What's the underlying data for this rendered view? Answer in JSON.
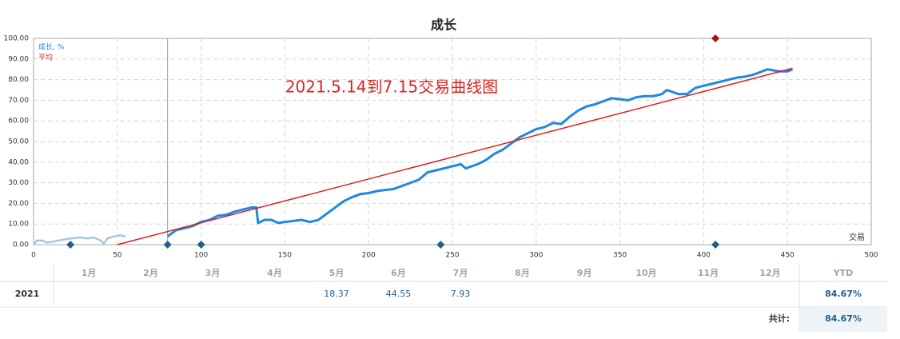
{
  "chart_data": {
    "type": "line",
    "title": "成长",
    "annotation": "2021.5.14到7.15交易曲线图",
    "x_label": "交易",
    "xlim": [
      0,
      500
    ],
    "xticks": [
      0,
      50,
      100,
      150,
      200,
      250,
      300,
      350,
      400,
      450,
      500
    ],
    "ylim": [
      0,
      100
    ],
    "yticks": [
      {
        "value": 0,
        "label": "0.00"
      },
      {
        "value": 10,
        "label": "10.00"
      },
      {
        "value": 20,
        "label": "20.00"
      },
      {
        "value": 30,
        "label": "30.00"
      },
      {
        "value": 40,
        "label": "40.00"
      },
      {
        "value": 50,
        "label": "50.00"
      },
      {
        "value": 60,
        "label": "60.00"
      },
      {
        "value": 70,
        "label": "70.00"
      },
      {
        "value": 80,
        "label": "80.00"
      },
      {
        "value": 90,
        "label": "90.00"
      },
      {
        "value": 100,
        "label": "100.00"
      }
    ],
    "grid": true,
    "legend": "top-left",
    "cursor_x": 80,
    "event_x": [
      22,
      80,
      100,
      243,
      407
    ],
    "event_color": "#1f5f8f",
    "top_event_x": [
      407
    ],
    "top_event_color": "#a01818",
    "series": [
      {
        "color": "#a9c6dc",
        "x": [
          0,
          2,
          5,
          8,
          12,
          18,
          22,
          28,
          32,
          36,
          40,
          42,
          44,
          48,
          52,
          55
        ],
        "values": [
          0,
          2,
          2,
          1,
          1.5,
          2.5,
          3,
          3.5,
          3,
          3.5,
          2,
          0.5,
          3,
          4,
          4.5,
          4
        ]
      },
      {
        "name": "成长, %",
        "color": "#1e88e5",
        "x": [
          80,
          85,
          90,
          95,
          100,
          105,
          110,
          115,
          120,
          125,
          130,
          133,
          134,
          138,
          142,
          146,
          150,
          155,
          160,
          165,
          170,
          175,
          180,
          185,
          190,
          195,
          200,
          205,
          210,
          215,
          220,
          225,
          230,
          235,
          240,
          245,
          250,
          255,
          258,
          265,
          270,
          275,
          280,
          285,
          290,
          295,
          300,
          305,
          310,
          315,
          320,
          325,
          330,
          335,
          340,
          345,
          350,
          355,
          360,
          365,
          370,
          375,
          378,
          385,
          390,
          395,
          400,
          405,
          410,
          415,
          420,
          425,
          430,
          435,
          438,
          445,
          450,
          453
        ],
        "values": [
          4,
          7,
          8,
          9,
          11,
          12,
          14,
          14.5,
          16,
          17,
          18,
          18,
          10.5,
          12,
          12,
          10.5,
          11,
          11.5,
          12,
          11,
          12,
          15,
          18,
          21,
          23,
          24.5,
          25,
          26,
          26.5,
          27,
          28.5,
          30,
          31.5,
          35,
          36,
          37,
          38,
          39,
          37,
          39,
          41,
          44,
          46,
          49,
          52,
          54,
          56,
          57,
          59,
          58.5,
          62,
          65,
          67,
          68,
          69.5,
          71,
          70.5,
          70,
          71.5,
          72,
          72,
          73,
          75,
          73,
          73,
          76,
          77,
          78,
          79,
          80,
          81,
          81.5,
          82.5,
          84,
          85,
          84,
          84,
          85
        ]
      },
      {
        "name": "平均",
        "color": "#e02020",
        "x": [
          50,
          453
        ],
        "values": [
          0,
          85.5
        ]
      }
    ]
  },
  "table": {
    "columns": [
      "1月",
      "2月",
      "3月",
      "4月",
      "5月",
      "6月",
      "7月",
      "8月",
      "9月",
      "10月",
      "11月",
      "12月",
      "YTD"
    ],
    "rows": [
      {
        "label": "2021",
        "cells": [
          null,
          null,
          null,
          null,
          "18.37",
          "44.55",
          "7.93",
          null,
          null,
          null,
          null,
          null,
          "84.67%"
        ]
      }
    ],
    "total_label": "共计:",
    "total": "84.67%"
  }
}
